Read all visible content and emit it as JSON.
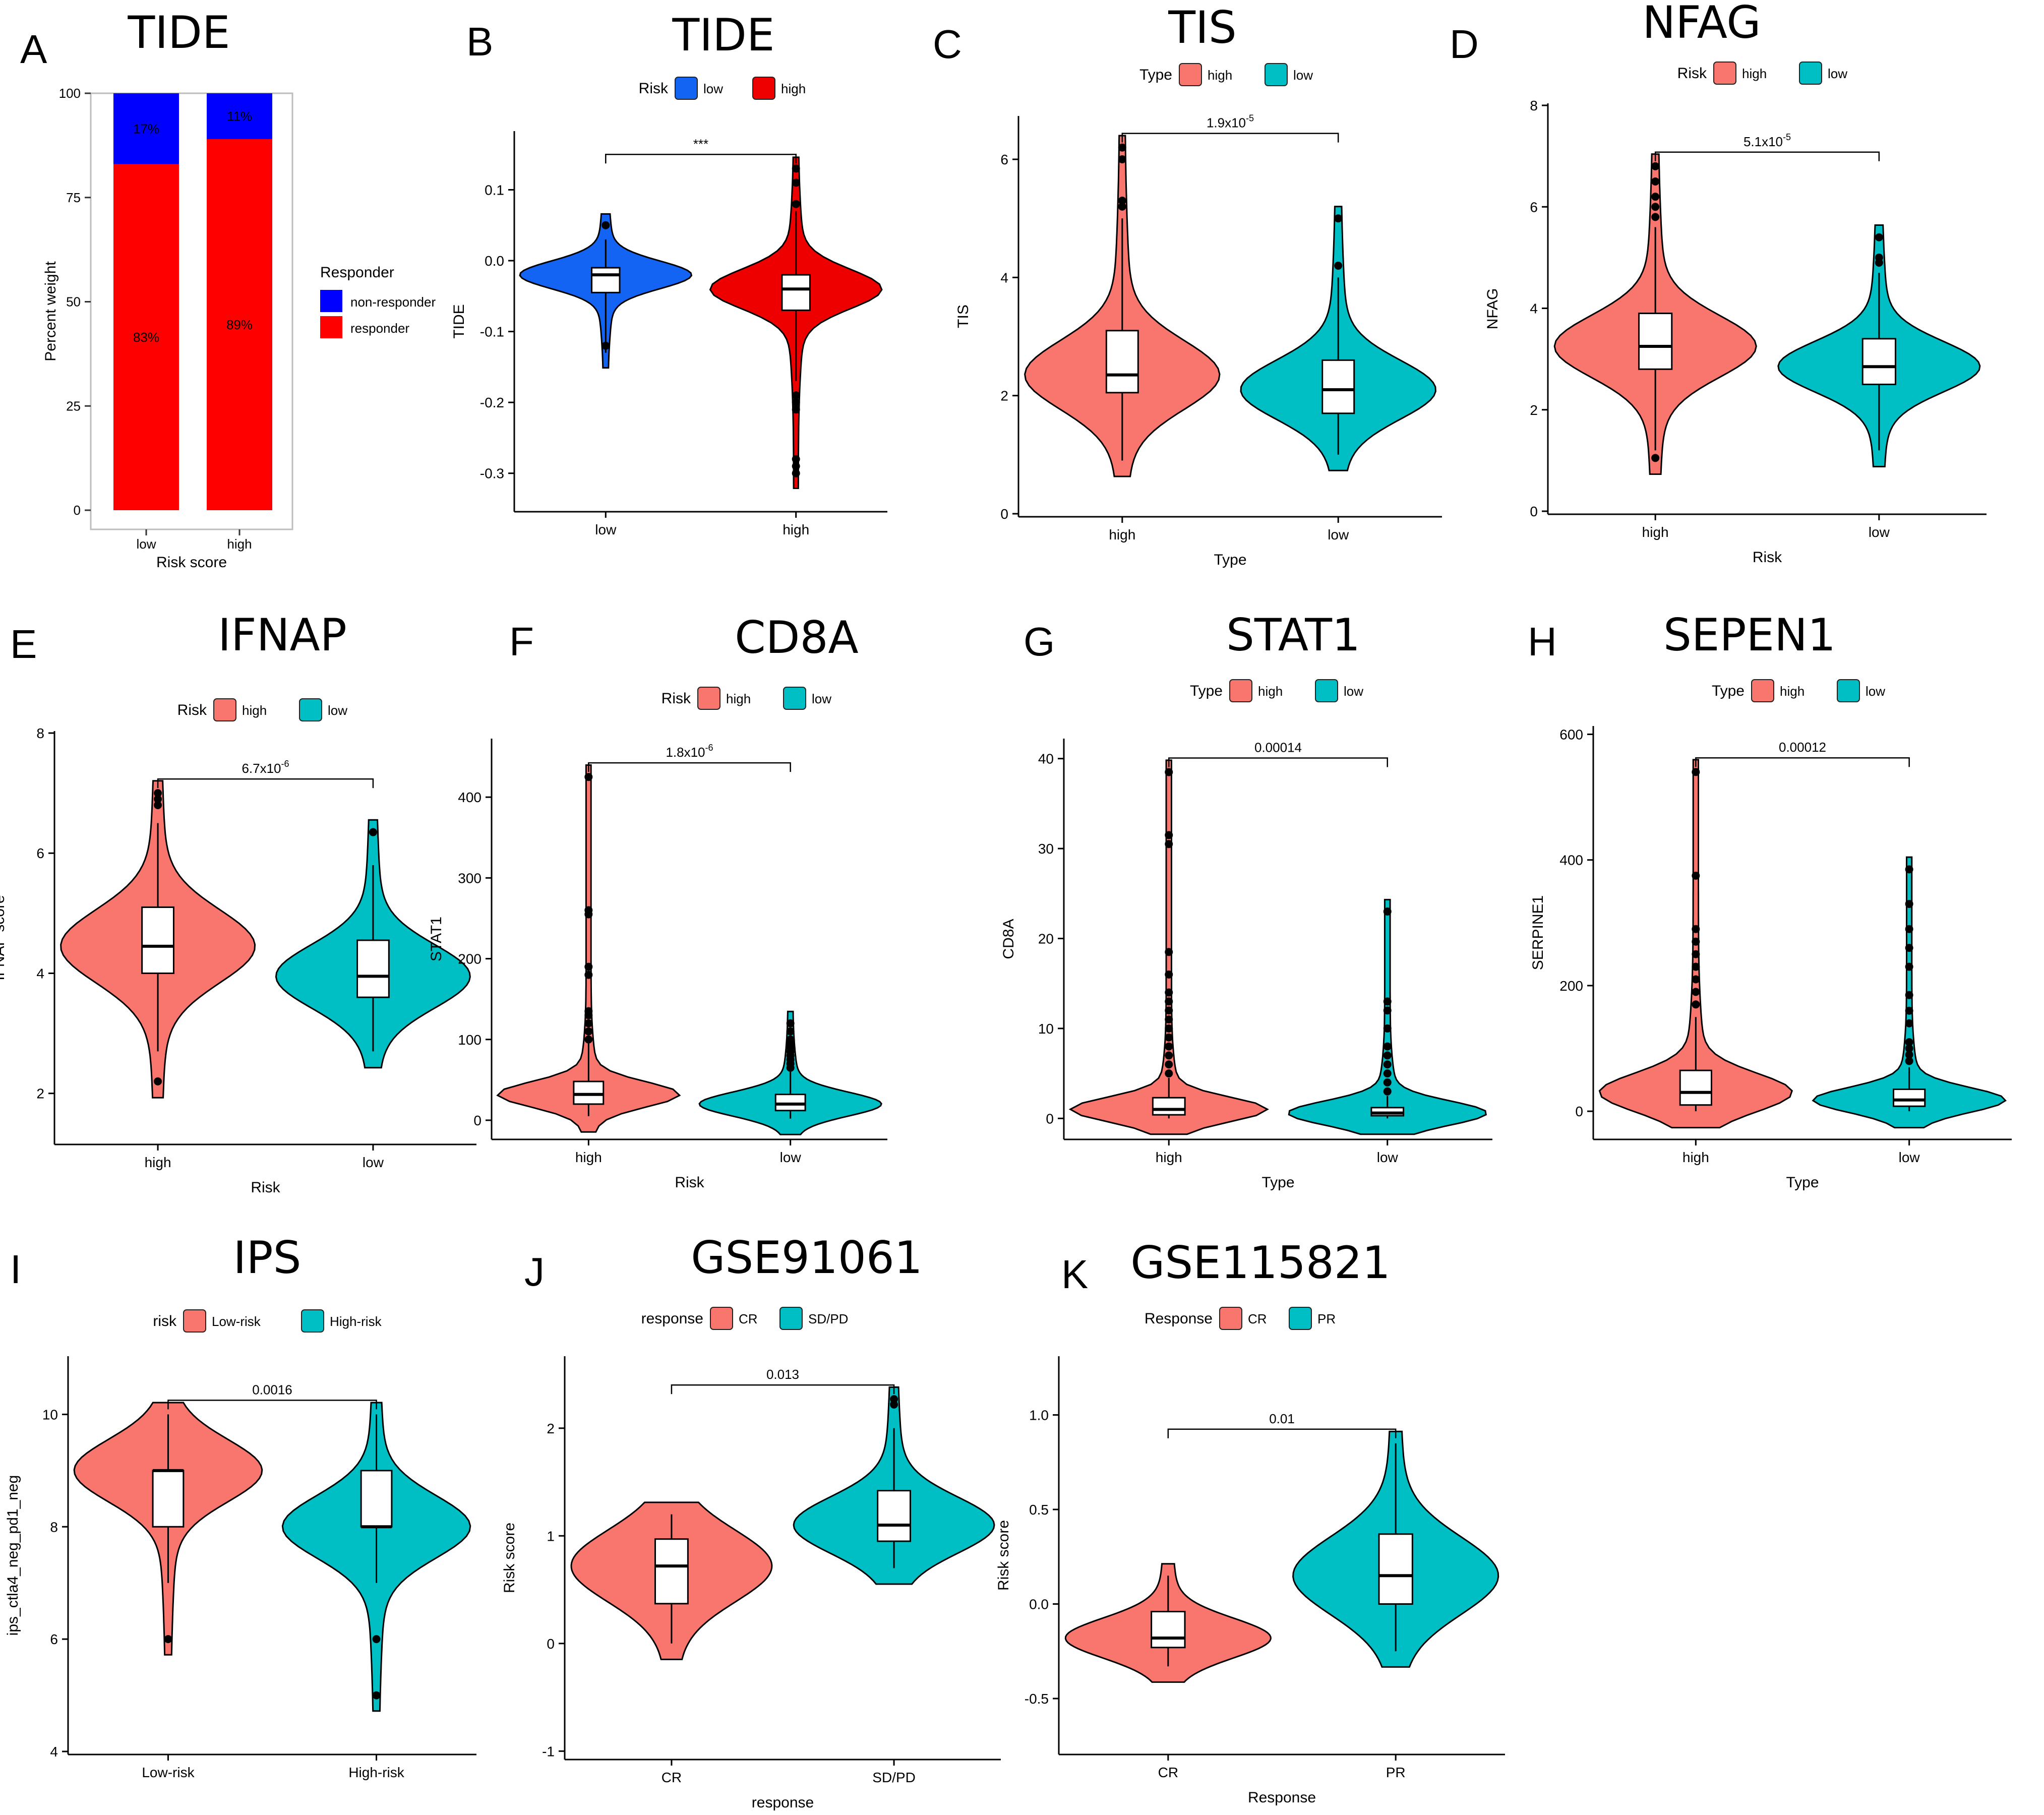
{
  "chart_data": [
    {
      "panel": "A",
      "type": "stacked-bar",
      "title": "TIDE",
      "xlabel": "Risk score",
      "ylabel": "Percent weight",
      "ylim": [
        0,
        100
      ],
      "yticks": [
        "0",
        "25",
        "50",
        "75",
        "100"
      ],
      "categories": [
        "low",
        "high"
      ],
      "series": [
        {
          "name": "responder",
          "color": "#FF0000",
          "values": [
            83,
            89
          ],
          "labels": [
            "83%",
            "89%"
          ]
        },
        {
          "name": "non-responder",
          "color": "#0000FF",
          "values": [
            17,
            11
          ],
          "labels": [
            "17%",
            "11%"
          ]
        }
      ],
      "legend_title": "Responder",
      "legend": [
        "non-responder",
        "responder"
      ],
      "legend_colors": [
        "#0000FF",
        "#FF0000"
      ]
    },
    {
      "panel": "B",
      "type": "violin",
      "title": "TIDE",
      "legend_title": "Risk",
      "legend": [
        "low",
        "high"
      ],
      "legend_colors": [
        "#1464F4",
        "#EE0000"
      ],
      "xlabel": "",
      "ylabel": "TIDE",
      "ylim": [
        -0.35,
        0.18
      ],
      "yticks": [
        "0.1",
        "0.0",
        "-0.1",
        "-0.2",
        "-0.3"
      ],
      "categories": [
        "low",
        "high"
      ],
      "stats": [
        {
          "min": -0.13,
          "q1": -0.045,
          "median": -0.02,
          "q3": -0.01,
          "max": 0.03,
          "outliers": [
            0.05,
            -0.12
          ]
        },
        {
          "min": -0.17,
          "q1": -0.07,
          "median": -0.04,
          "q3": -0.02,
          "max": 0.07,
          "outliers": [
            0.13,
            0.11,
            0.08,
            -0.19,
            -0.2,
            -0.21,
            -0.28,
            -0.29,
            -0.3
          ]
        }
      ],
      "pvalue": "***"
    },
    {
      "panel": "C",
      "type": "violin",
      "title": "TIS",
      "legend_title": "Type",
      "legend": [
        "high",
        "low"
      ],
      "legend_colors": [
        "#F8766D",
        "#00BFC4"
      ],
      "xlabel": "Type",
      "ylabel": "TIS",
      "ylim": [
        0,
        6.7
      ],
      "yticks": [
        "0",
        "2",
        "4",
        "6"
      ],
      "categories": [
        "high",
        "low"
      ],
      "stats": [
        {
          "min": 0.9,
          "q1": 2.05,
          "median": 2.35,
          "q3": 3.1,
          "max": 5.0,
          "outliers": [
            5.2,
            5.3,
            6.0,
            6.2
          ]
        },
        {
          "min": 1.0,
          "q1": 1.7,
          "median": 2.1,
          "q3": 2.6,
          "max": 4.0,
          "outliers": [
            4.2,
            5.0
          ]
        }
      ],
      "pvalue": "1.9x10",
      "pvalue_exp": "-5"
    },
    {
      "panel": "D",
      "type": "violin",
      "title": "NFAG",
      "legend_title": "Risk",
      "legend": [
        "high",
        "low"
      ],
      "legend_colors": [
        "#F8766D",
        "#00BFC4"
      ],
      "xlabel": "Risk",
      "ylabel": "NFAG",
      "ylim": [
        0,
        8
      ],
      "yticks": [
        "0",
        "2",
        "4",
        "6",
        "8"
      ],
      "categories": [
        "high",
        "low"
      ],
      "stats": [
        {
          "min": 1.2,
          "q1": 2.8,
          "median": 3.25,
          "q3": 3.9,
          "max": 5.6,
          "outliers": [
            5.8,
            6.0,
            6.2,
            6.5,
            6.8,
            1.05
          ]
        },
        {
          "min": 1.2,
          "q1": 2.5,
          "median": 2.85,
          "q3": 3.4,
          "max": 4.7,
          "outliers": [
            4.9,
            5.0,
            5.4
          ]
        }
      ],
      "pvalue": "5.1x10",
      "pvalue_exp": "-5"
    },
    {
      "panel": "E",
      "type": "violin",
      "title": "IFNAP",
      "legend_title": "Risk",
      "legend": [
        "high",
        "low"
      ],
      "legend_colors": [
        "#F8766D",
        "#00BFC4"
      ],
      "xlabel": "Risk",
      "ylabel": "IFNAP score",
      "ylim": [
        1.2,
        8
      ],
      "yticks": [
        "2",
        "4",
        "6",
        "8"
      ],
      "categories": [
        "high",
        "low"
      ],
      "stats": [
        {
          "min": 2.7,
          "q1": 4.0,
          "median": 4.45,
          "q3": 5.1,
          "max": 6.5,
          "outliers": [
            6.8,
            6.9,
            7.0,
            2.2
          ]
        },
        {
          "min": 2.7,
          "q1": 3.6,
          "median": 3.95,
          "q3": 4.55,
          "max": 5.8,
          "outliers": [
            6.35
          ]
        }
      ],
      "pvalue": "6.7x10",
      "pvalue_exp": "-6"
    },
    {
      "panel": "F",
      "type": "violin",
      "title": "CD8A",
      "legend_title": "Risk",
      "legend": [
        "high",
        "low"
      ],
      "legend_colors": [
        "#F8766D",
        "#00BFC4"
      ],
      "xlabel": "Risk",
      "ylabel": "STAT1",
      "ylim": [
        -20,
        470
      ],
      "yticks": [
        "0",
        "100",
        "200",
        "300",
        "400"
      ],
      "categories": [
        "high",
        "low"
      ],
      "stats": [
        {
          "min": 5,
          "q1": 20,
          "median": 32,
          "q3": 48,
          "max": 95,
          "outliers": [
            100,
            110,
            120,
            130,
            135,
            180,
            190,
            255,
            260,
            425
          ]
        },
        {
          "min": 2,
          "q1": 12,
          "median": 20,
          "q3": 32,
          "max": 60,
          "outliers": [
            65,
            70,
            75,
            80,
            85,
            90,
            95,
            100,
            110,
            120
          ]
        }
      ],
      "pvalue": "1.8x10",
      "pvalue_exp": "-6"
    },
    {
      "panel": "G",
      "type": "violin",
      "title": "STAT1",
      "legend_title": "Type",
      "legend": [
        "high",
        "low"
      ],
      "legend_colors": [
        "#F8766D",
        "#00BFC4"
      ],
      "xlabel": "Type",
      "ylabel": "CD8A",
      "ylim": [
        -2,
        42
      ],
      "yticks": [
        "0",
        "10",
        "20",
        "30",
        "40"
      ],
      "categories": [
        "high",
        "low"
      ],
      "stats": [
        {
          "min": 0,
          "q1": 0.4,
          "median": 1.0,
          "q3": 2.3,
          "max": 4.5,
          "outliers": [
            5,
            6,
            7,
            8,
            9,
            10,
            11,
            12,
            13,
            14,
            16,
            18.5,
            30.5,
            31.5,
            38.5
          ]
        },
        {
          "min": 0,
          "q1": 0.3,
          "median": 0.6,
          "q3": 1.2,
          "max": 2.5,
          "outliers": [
            3,
            4,
            5,
            6,
            7,
            8,
            10,
            12,
            13,
            23
          ]
        }
      ],
      "pvalue": "0.00014"
    },
    {
      "panel": "H",
      "type": "violin",
      "title": "SEPEN1",
      "legend_title": "Type",
      "legend": [
        "high",
        "low"
      ],
      "legend_colors": [
        "#F8766D",
        "#00BFC4"
      ],
      "xlabel": "Type",
      "ylabel": "SERPINE1",
      "ylim": [
        -40,
        610
      ],
      "yticks": [
        "0",
        "200",
        "400",
        "600"
      ],
      "categories": [
        "high",
        "low"
      ],
      "stats": [
        {
          "min": 0,
          "q1": 10,
          "median": 30,
          "q3": 65,
          "max": 150,
          "outliers": [
            170,
            190,
            210,
            230,
            250,
            270,
            290,
            375,
            540
          ]
        },
        {
          "min": 0,
          "q1": 8,
          "median": 18,
          "q3": 35,
          "max": 70,
          "outliers": [
            80,
            90,
            100,
            110,
            140,
            160,
            185,
            230,
            260,
            290,
            330,
            385
          ]
        }
      ],
      "pvalue": "0.00012"
    },
    {
      "panel": "I",
      "type": "violin",
      "title": "IPS",
      "legend_title": "risk",
      "legend": [
        "Low-risk",
        "High-risk"
      ],
      "legend_colors": [
        "#F8766D",
        "#00BFC4"
      ],
      "xlabel": "",
      "ylabel": "ips_ctla4_neg_pd1_neg",
      "ylim": [
        4,
        11
      ],
      "yticks": [
        "4",
        "6",
        "8",
        "10"
      ],
      "categories": [
        "Low-risk",
        "High-risk"
      ],
      "stats": [
        {
          "min": 7,
          "q1": 8,
          "median": 9,
          "q3": 9,
          "max": 10,
          "outliers": [
            6
          ]
        },
        {
          "min": 7,
          "q1": 8,
          "median": 8,
          "q3": 9,
          "max": 10,
          "outliers": [
            6,
            5
          ]
        }
      ],
      "pvalue": "0.0016"
    },
    {
      "panel": "J",
      "type": "violin",
      "title": "GSE91061",
      "legend_title": "response",
      "legend": [
        "CR",
        "SD/PD"
      ],
      "legend_colors": [
        "#F8766D",
        "#00BFC4"
      ],
      "xlabel": "response",
      "ylabel": "Risk score",
      "ylim": [
        -1.05,
        2.65
      ],
      "yticks": [
        "-1",
        "0",
        "1",
        "2"
      ],
      "categories": [
        "CR",
        "SD/PD"
      ],
      "stats": [
        {
          "min": 0.0,
          "q1": 0.37,
          "median": 0.72,
          "q3": 0.97,
          "max": 1.2,
          "outliers": []
        },
        {
          "min": 0.7,
          "q1": 0.95,
          "median": 1.1,
          "q3": 1.42,
          "max": 2.0,
          "outliers": [
            2.22,
            2.27
          ]
        }
      ],
      "pvalue": "0.013"
    },
    {
      "panel": "K",
      "type": "violin",
      "title": "GSE115821",
      "legend_title": "Response",
      "legend": [
        "CR",
        "PR"
      ],
      "legend_colors": [
        "#F8766D",
        "#00BFC4"
      ],
      "xlabel": "Response",
      "ylabel": "Risk score",
      "ylim": [
        -0.78,
        1.3
      ],
      "yticks": [
        "-0.5",
        "0.0",
        "0.5",
        "1.0"
      ],
      "categories": [
        "CR",
        "PR"
      ],
      "stats": [
        {
          "min": -0.33,
          "q1": -0.23,
          "median": -0.18,
          "q3": -0.04,
          "max": 0.15,
          "outliers": []
        },
        {
          "min": -0.25,
          "q1": 0.0,
          "median": 0.15,
          "q3": 0.37,
          "max": 0.85,
          "outliers": []
        }
      ],
      "pvalue": "0.01"
    }
  ]
}
